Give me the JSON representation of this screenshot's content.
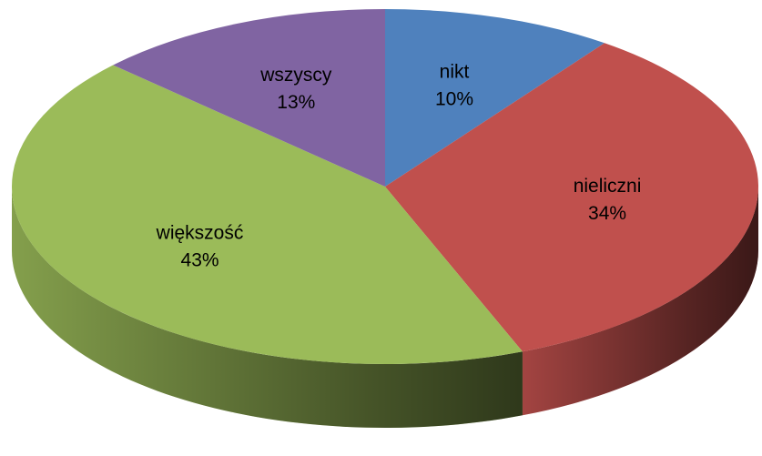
{
  "chart_data": {
    "type": "pie3d",
    "categories": [
      "nikt",
      "nieliczni",
      "większość",
      "wszyscy"
    ],
    "values": [
      10,
      34,
      43,
      13
    ],
    "value_labels": [
      "10%",
      "34%",
      "43%",
      "13%"
    ],
    "colors": [
      "#4f81bd",
      "#c0504d",
      "#9bbb59",
      "#8064a2"
    ]
  }
}
